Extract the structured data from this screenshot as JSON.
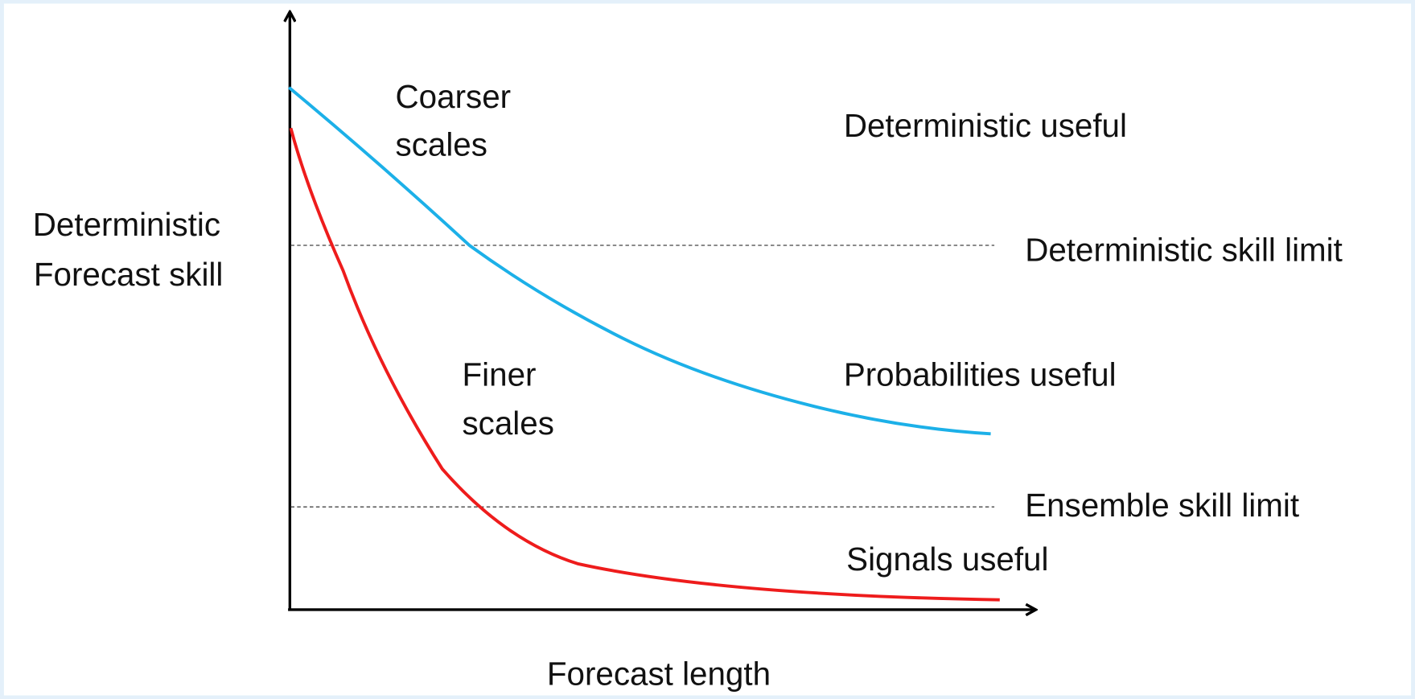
{
  "axes": {
    "y_label": [
      "Deterministic",
      "Forecast skill"
    ],
    "x_label": "Forecast length"
  },
  "curves": [
    {
      "label": [
        "Coarser",
        "scales"
      ],
      "color": "#1cb0e8"
    },
    {
      "label": [
        "Finer",
        "scales"
      ],
      "color": "#ee1c1c"
    }
  ],
  "regions": [
    "Deterministic useful",
    "Probabilities useful",
    "Signals useful"
  ],
  "limits": [
    "Deterministic skill limit",
    "Ensemble skill limit"
  ]
}
